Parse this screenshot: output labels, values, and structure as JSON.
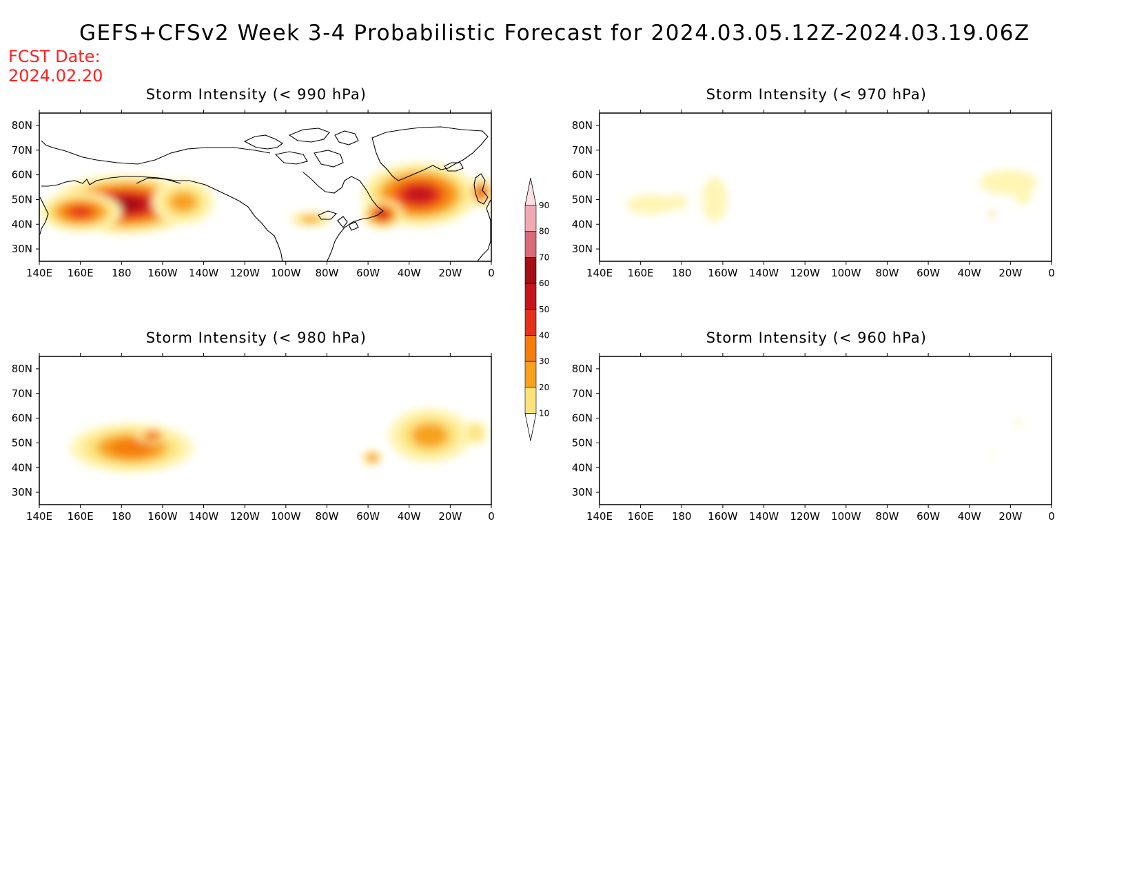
{
  "title": "GEFS+CFSv2 Week 3-4 Probabilistic Forecast for 2024.03.05.12Z-2024.03.19.06Z",
  "fcst_date_label": "FCST Date:",
  "fcst_date": "2024.02.20",
  "colors": {
    "title_red": "#ff2020",
    "levels": [
      "#ffffff",
      "#fff5b4",
      "#fde27a",
      "#f7a21b",
      "#f47d0c",
      "#e6321b",
      "#c4161c",
      "#a50f15",
      "#d96a78",
      "#f2aab2",
      "#fde0e4"
    ]
  },
  "chart_data": [
    {
      "type": "heatmap",
      "title": "Storm Intensity (< 990 hPa)",
      "x_ticks": [
        "140E",
        "160E",
        "180",
        "160W",
        "140W",
        "120W",
        "100W",
        "80W",
        "60W",
        "40W",
        "20W",
        "0"
      ],
      "y_ticks": [
        "80N",
        "70N",
        "60N",
        "50N",
        "40N",
        "30N"
      ],
      "xlim": [
        140,
        360
      ],
      "ylim": [
        25,
        85
      ],
      "blobs": [
        {
          "lon": 182,
          "lat": 48,
          "rx": 36,
          "ry": 12,
          "value": 78
        },
        {
          "lon": 160,
          "lat": 45,
          "rx": 20,
          "ry": 8,
          "value": 55
        },
        {
          "lon": 210,
          "lat": 49,
          "rx": 15,
          "ry": 9,
          "value": 35
        },
        {
          "lon": 325,
          "lat": 52,
          "rx": 28,
          "ry": 13,
          "value": 65
        },
        {
          "lon": 307,
          "lat": 44,
          "rx": 10,
          "ry": 6,
          "value": 60
        },
        {
          "lon": 355,
          "lat": 53,
          "rx": 6,
          "ry": 6,
          "value": 55
        },
        {
          "lon": 272,
          "lat": 42,
          "rx": 10,
          "ry": 3,
          "value": 35
        }
      ]
    },
    {
      "type": "heatmap",
      "title": "Storm Intensity (< 970 hPa)",
      "x_ticks": [
        "140E",
        "160E",
        "180",
        "160W",
        "140W",
        "120W",
        "100W",
        "80W",
        "60W",
        "40W",
        "20W",
        "0"
      ],
      "y_ticks": [
        "80N",
        "70N",
        "60N",
        "50N",
        "40N",
        "30N"
      ],
      "xlim": [
        140,
        360
      ],
      "ylim": [
        25,
        85
      ],
      "blobs": [
        {
          "lon": 165,
          "lat": 48,
          "rx": 12,
          "ry": 4,
          "value": 15
        },
        {
          "lon": 178,
          "lat": 49,
          "rx": 5,
          "ry": 3,
          "value": 15
        },
        {
          "lon": 196,
          "lat": 50,
          "rx": 6,
          "ry": 9,
          "value": 15
        },
        {
          "lon": 339,
          "lat": 57,
          "rx": 14,
          "ry": 5,
          "value": 15
        },
        {
          "lon": 346,
          "lat": 52,
          "rx": 4,
          "ry": 4,
          "value": 15
        },
        {
          "lon": 331,
          "lat": 44,
          "rx": 1.5,
          "ry": 1.5,
          "value": 35
        }
      ]
    },
    {
      "type": "heatmap",
      "title": "Storm Intensity (< 980 hPa)",
      "x_ticks": [
        "140E",
        "160E",
        "180",
        "160W",
        "140W",
        "120W",
        "100W",
        "80W",
        "60W",
        "40W",
        "20W",
        "0"
      ],
      "y_ticks": [
        "80N",
        "70N",
        "60N",
        "50N",
        "40N",
        "30N"
      ],
      "xlim": [
        140,
        360
      ],
      "ylim": [
        25,
        85
      ],
      "blobs": [
        {
          "lon": 185,
          "lat": 48,
          "rx": 30,
          "ry": 10,
          "value": 40
        },
        {
          "lon": 195,
          "lat": 53,
          "rx": 8,
          "ry": 3,
          "value": 50
        },
        {
          "lon": 330,
          "lat": 53,
          "rx": 20,
          "ry": 11,
          "value": 30
        },
        {
          "lon": 302,
          "lat": 44,
          "rx": 5,
          "ry": 3,
          "value": 45
        },
        {
          "lon": 352,
          "lat": 54,
          "rx": 6,
          "ry": 5,
          "value": 20
        }
      ]
    },
    {
      "type": "heatmap",
      "title": "Storm Intensity (< 960 hPa)",
      "x_ticks": [
        "140E",
        "160E",
        "180",
        "160W",
        "140W",
        "120W",
        "100W",
        "80W",
        "60W",
        "40W",
        "20W",
        "0"
      ],
      "y_ticks": [
        "80N",
        "70N",
        "60N",
        "50N",
        "40N",
        "30N"
      ],
      "xlim": [
        140,
        360
      ],
      "ylim": [
        25,
        85
      ],
      "blobs": [
        {
          "lon": 344,
          "lat": 58,
          "rx": 1.5,
          "ry": 1.5,
          "value": 15
        },
        {
          "lon": 332,
          "lat": 46,
          "rx": 1,
          "ry": 1,
          "value": 15
        }
      ]
    }
  ],
  "colorbar": {
    "levels": [
      "10",
      "20",
      "30",
      "40",
      "50",
      "60",
      "70",
      "80",
      "90"
    ]
  }
}
